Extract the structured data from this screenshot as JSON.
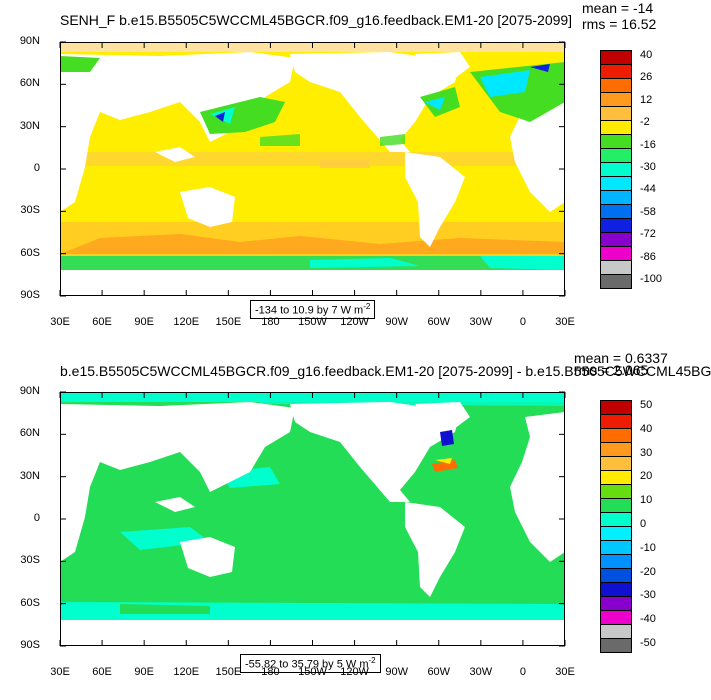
{
  "panels": [
    {
      "title": "SENH_F b.e15.B5505C5WCCML45BGCR.f09_g16.feedback.EM1-20 [2075-2099]",
      "mean": "mean = -14",
      "rms": "rms = 16.52",
      "range": "-134 to 10.9 by 7  W m",
      "range_sup": "-2",
      "lat_labels": [
        "90N",
        "60N",
        "30N",
        "0",
        "30S",
        "60S",
        "90S"
      ],
      "lon_labels": [
        "30E",
        "60E",
        "90E",
        "120E",
        "150E",
        "180",
        "150W",
        "120W",
        "90W",
        "60W",
        "30W",
        "0",
        "30E"
      ],
      "colorbar": {
        "labels": [
          "40",
          "26",
          "12",
          "-2",
          "-16",
          "-30",
          "-44",
          "-58",
          "-72",
          "-86",
          "-100"
        ],
        "colors": [
          "#c00000",
          "#ee1c00",
          "#ff6c00",
          "#ff9a1e",
          "#ffbe3c",
          "#ffea00",
          "#44dd22",
          "#22ee66",
          "#00ffcc",
          "#00e8ff",
          "#00b4ff",
          "#0070f0",
          "#1020e0",
          "#8800cc",
          "#ee00cc",
          "#c8c8c8",
          "#6a6a6a"
        ]
      }
    },
    {
      "title": "b.e15.B5505C5WCCML45BGCR.f09_g16.feedback.EM1-20 [2075-2099] - b.e15.B5505C5WCCML45BG",
      "mean": "mean = 0.6337",
      "rms": "rms = 2.065",
      "range": "-55.82 to 35.79 by 5  W m",
      "range_sup": "-2",
      "lat_labels": [
        "90N",
        "60N",
        "30N",
        "0",
        "30S",
        "60S",
        "90S"
      ],
      "lon_labels": [
        "30E",
        "60E",
        "90E",
        "120E",
        "150E",
        "180",
        "150W",
        "120W",
        "90W",
        "60W",
        "30W",
        "0",
        "30E"
      ],
      "colorbar": {
        "labels": [
          "50",
          "40",
          "30",
          "20",
          "10",
          "0",
          "-10",
          "-20",
          "-30",
          "-40",
          "-50"
        ],
        "colors": [
          "#c00000",
          "#ee1c00",
          "#ff6c00",
          "#ff9a1e",
          "#ffbe3c",
          "#ffea00",
          "#66dd11",
          "#22dd55",
          "#00ffcc",
          "#00f0ff",
          "#00c8ff",
          "#0090ff",
          "#0050e0",
          "#1010d0",
          "#8800cc",
          "#ee00cc",
          "#c8c8c8",
          "#6a6a6a"
        ]
      }
    }
  ]
}
